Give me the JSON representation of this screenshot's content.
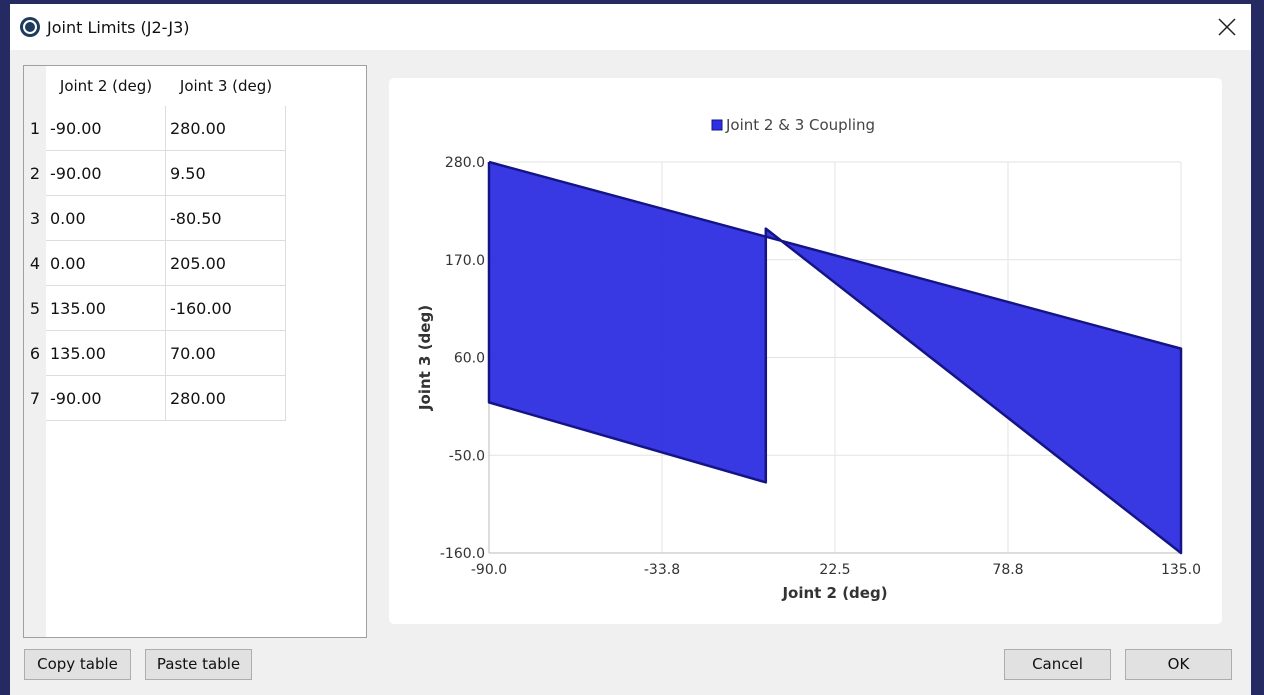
{
  "window": {
    "title": "Joint Limits (J2-J3)"
  },
  "table": {
    "columns": [
      "Joint 2 (deg)",
      "Joint 3 (deg)"
    ],
    "row_labels": [
      "1",
      "2",
      "3",
      "4",
      "5",
      "6",
      "7"
    ],
    "rows": [
      [
        "-90.00",
        "280.00"
      ],
      [
        "-90.00",
        "9.50"
      ],
      [
        "0.00",
        "-80.50"
      ],
      [
        "0.00",
        "205.00"
      ],
      [
        "135.00",
        "-160.00"
      ],
      [
        "135.00",
        "70.00"
      ],
      [
        "-90.00",
        "280.00"
      ]
    ]
  },
  "chart_data": {
    "type": "area",
    "x_label": "Joint 2 (deg)",
    "y_label": "Joint 3 (deg)",
    "series": [
      {
        "name": "Joint 2 & 3 Coupling",
        "color": "#2e2ee2",
        "x": [
          -90,
          -90,
          0,
          0,
          135,
          135,
          -90
        ],
        "values": [
          280,
          9.5,
          -80.5,
          205,
          -160,
          70,
          280
        ]
      }
    ],
    "xlim": [
      -90,
      135
    ],
    "xticks": [
      {
        "value": -90,
        "label": "-90.0"
      },
      {
        "value": -33.75,
        "label": "-33.8"
      },
      {
        "value": 22.5,
        "label": "22.5"
      },
      {
        "value": 78.75,
        "label": "78.8"
      },
      {
        "value": 135,
        "label": "135.0"
      }
    ],
    "ylim": [
      -160,
      280
    ],
    "yticks": [
      {
        "value": -160,
        "label": "-160.0"
      },
      {
        "value": -50,
        "label": "-50.0"
      },
      {
        "value": 60,
        "label": "60.0"
      },
      {
        "value": 170,
        "label": "170.0"
      },
      {
        "value": 280,
        "label": "280.0"
      }
    ],
    "grid": true,
    "legend": "top"
  },
  "buttons": {
    "copy": "Copy table",
    "paste": "Paste table",
    "cancel": "Cancel",
    "ok": "OK"
  }
}
